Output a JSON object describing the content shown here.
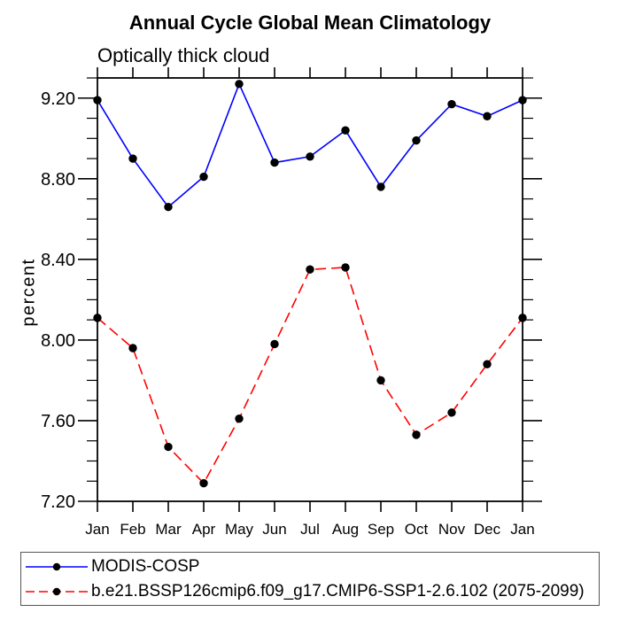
{
  "chart_data": {
    "type": "line",
    "title": "Annual Cycle Global Mean Climatology",
    "subtitle": "Optically thick cloud",
    "xlabel": "",
    "ylabel": "percent",
    "categories": [
      "Jan",
      "Feb",
      "Mar",
      "Apr",
      "May",
      "Jun",
      "Jul",
      "Aug",
      "Sep",
      "Oct",
      "Nov",
      "Dec",
      "Jan"
    ],
    "series": [
      {
        "name": "MODIS-COSP",
        "color": "#0000ff",
        "line_style": "solid",
        "marker": "filled-circle",
        "marker_color": "#000000",
        "values": [
          9.19,
          8.9,
          8.66,
          8.81,
          9.27,
          8.88,
          8.91,
          9.04,
          8.76,
          8.99,
          9.17,
          9.11,
          9.19
        ]
      },
      {
        "name": "b.e21.BSSP126cmip6.f09_g17.CMIP6-SSP1-2.6.102 (2075-2099)",
        "color": "#ff0000",
        "line_style": "dashed",
        "marker": "filled-circle",
        "marker_color": "#000000",
        "values": [
          8.11,
          7.96,
          7.47,
          7.29,
          7.61,
          7.98,
          8.35,
          8.36,
          7.8,
          7.53,
          7.64,
          7.88,
          8.11
        ]
      }
    ],
    "ylim": [
      7.2,
      9.3
    ],
    "yticks_major": [
      7.2,
      7.6,
      8.0,
      8.4,
      8.8,
      9.2
    ],
    "ytick_labels": [
      "7.20",
      "7.60",
      "8.00",
      "8.40",
      "8.80",
      "9.20"
    ],
    "ytick_minor_step": 0.1,
    "grid": false,
    "legend_position": "bottom",
    "axis_color": "#000000",
    "text_color": "#000000"
  }
}
